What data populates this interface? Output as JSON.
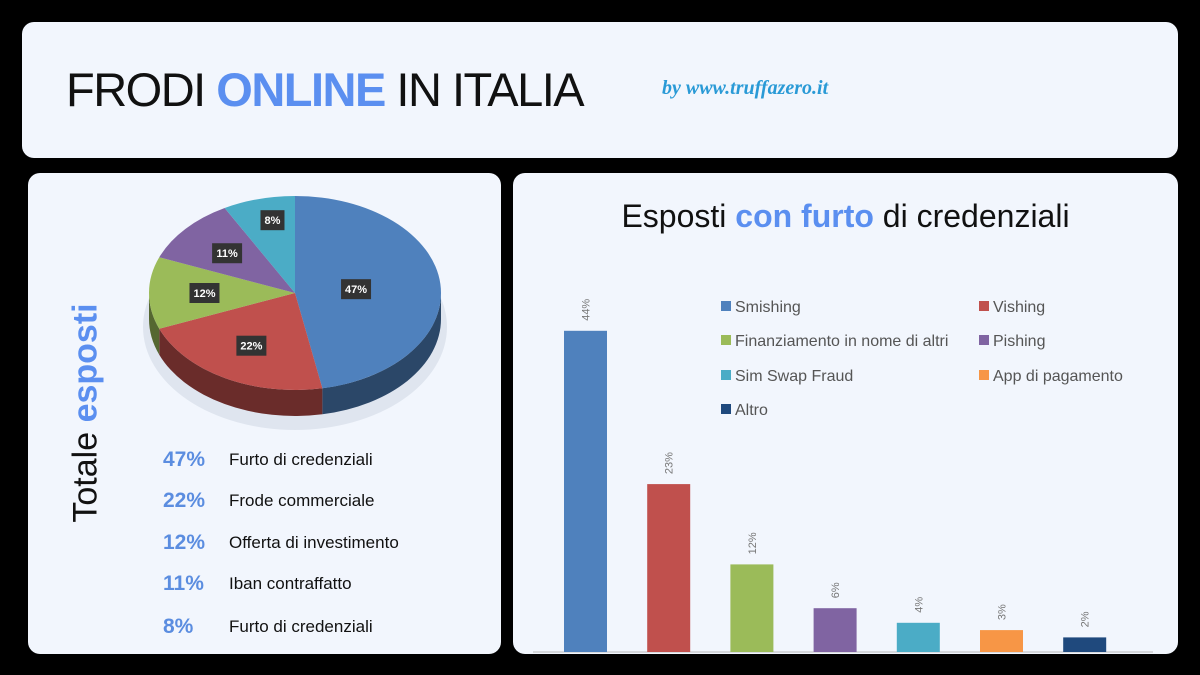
{
  "header": {
    "title_part1": "FRODI",
    "title_part2": "ONLINE",
    "title_part3": "IN ITALIA",
    "byline": "by www.truffazero.it"
  },
  "left": {
    "vertical_title_part1": "Totale",
    "vertical_title_part2": "esposti",
    "list": [
      {
        "pct": "47%",
        "label": "Furto di credenziali"
      },
      {
        "pct": "22%",
        "label": "Frode commerciale"
      },
      {
        "pct": "12%",
        "label": "Offerta di investimento"
      },
      {
        "pct": "11%",
        "label": "Iban contraffatto"
      },
      {
        "pct": "8%",
        "label": "Furto di credenziali"
      }
    ]
  },
  "right": {
    "title_part1": "Esposti",
    "title_part2": "con furto",
    "title_part3": "di credenziali"
  },
  "colors": {
    "accent": "#5b8ff0",
    "byline": "#2a9ad6"
  },
  "chart_data": [
    {
      "type": "pie",
      "style": "3d",
      "values": [
        47,
        22,
        12,
        11,
        8
      ],
      "data_labels": [
        "47%",
        "22%",
        "12%",
        "11%",
        "8%"
      ],
      "colors": [
        "#4f81bd",
        "#c0504d",
        "#9bbb59",
        "#8064a2",
        "#4bacc6"
      ]
    },
    {
      "type": "bar",
      "categories": [
        "Smishing",
        "Vishing",
        "Finanziamento in nome di altri",
        "Pishing",
        "Sim Swap Fraud",
        "App di pagamento",
        "Altro"
      ],
      "values": [
        44,
        23,
        12,
        6,
        4,
        3,
        2
      ],
      "data_labels": [
        "44%",
        "23%",
        "12%",
        "6%",
        "4%",
        "3%",
        "2%"
      ],
      "colors": [
        "#4f81bd",
        "#c0504d",
        "#9bbb59",
        "#8064a2",
        "#4bacc6",
        "#f79646",
        "#1f497d"
      ],
      "legend": "top-right",
      "grid": false
    }
  ]
}
